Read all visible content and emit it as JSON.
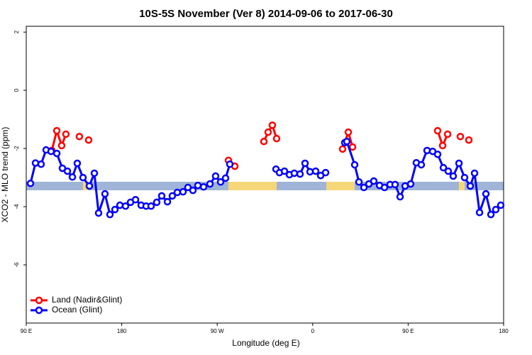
{
  "chart_data": {
    "type": "line",
    "title": "10S-5S November (Ver 8)   2014-09-06 to 2017-06-30",
    "x_label": "Longitude (deg E)",
    "y_label": "XCO2 - MLO trend (ppm)",
    "xlim": [
      90,
      540
    ],
    "ylim": [
      -8,
      2.2
    ],
    "xticks": [
      {
        "value": 90,
        "label": "90 E"
      },
      180,
      {
        "value": 270,
        "label": "90 W"
      },
      {
        "value": 360,
        "label": "0"
      },
      {
        "value": 450,
        "label": "90 E"
      },
      {
        "value": 540,
        "label": "180"
      }
    ],
    "yticks": [
      -6,
      -4,
      -2,
      0,
      2
    ],
    "legend": "bottom-left",
    "series": [
      {
        "name": "Land (Nadir&Glint)",
        "color": "#ff0000",
        "x": [
          114.1,
          118.8,
          123.4,
          127.4,
          null,
          140.1,
          null,
          148.8,
          null,
          280.6,
          286.6,
          null,
          314.0,
          318.0,
          322.0,
          326.0,
          null,
          388.2,
          393.6,
          397.6,
          null,
          477.8,
          482.5,
          487.2,
          null,
          499.2,
          null,
          507.2
        ],
        "values": [
          -2.07,
          -1.39,
          -1.9,
          -1.51,
          null,
          -1.59,
          null,
          -1.71,
          null,
          -2.41,
          -2.61,
          null,
          -1.76,
          -1.44,
          -1.2,
          -1.66,
          null,
          -2.02,
          -1.44,
          -1.95,
          null,
          -1.39,
          -1.9,
          -1.51,
          null,
          -1.59,
          null,
          -1.71
        ]
      },
      {
        "name": "Ocean (Glint)",
        "color": "#0000ff",
        "x": [
          94.0,
          98.7,
          104.0,
          108.7,
          113.4,
          118.8,
          124.1,
          128.8,
          133.5,
          138.1,
          143.5,
          149.5,
          154.2,
          158.2,
          164.2,
          168.9,
          173.6,
          178.3,
          183.6,
          188.3,
          193.0,
          198.3,
          203.0,
          207.7,
          213.0,
          217.7,
          223.1,
          227.7,
          232.4,
          237.8,
          242.4,
          247.1,
          251.8,
          257.2,
          263.2,
          268.5,
          273.2,
          277.9,
          281.9,
          null,
          325.4,
          328.7,
          333.4,
          338.1,
          342.7,
          348.1,
          352.8,
          357.5,
          362.8,
          367.5,
          372.2,
          null,
          390.2,
          392.2,
          399.6,
          403.6,
          408.3,
          413.0,
          417.6,
          423.0,
          427.7,
          433.0,
          437.7,
          442.4,
          447.1,
          452.4,
          457.7,
          462.4,
          467.8,
          473.1,
          477.8,
          483.2,
          487.8,
          492.5,
          497.9,
          503.2,
          508.6,
          512.6,
          517.3,
          523.3,
          528.0,
          532.6,
          537.3
        ],
        "values": [
          -3.2,
          -2.5,
          -2.54,
          -2.05,
          -2.1,
          -2.17,
          -2.68,
          -2.78,
          -2.98,
          -2.51,
          -3.0,
          -3.29,
          -2.85,
          -4.22,
          -3.56,
          -4.27,
          -4.1,
          -3.95,
          -3.98,
          -3.85,
          -3.76,
          -3.95,
          -3.98,
          -3.98,
          -3.85,
          -3.63,
          -3.83,
          -3.63,
          -3.51,
          -3.49,
          -3.34,
          -3.44,
          -3.27,
          -3.32,
          -3.22,
          -2.95,
          -3.15,
          -3.02,
          -2.54,
          null,
          -2.71,
          -2.83,
          -2.78,
          -2.9,
          -2.85,
          -2.88,
          -2.51,
          -2.8,
          -2.78,
          -2.93,
          -2.83,
          null,
          -1.8,
          -1.76,
          -2.56,
          -3.15,
          -3.34,
          -3.22,
          -3.12,
          -3.27,
          -3.34,
          -3.24,
          -3.24,
          -3.66,
          -3.29,
          -3.22,
          -2.49,
          -2.56,
          -2.07,
          -2.1,
          -2.2,
          -2.66,
          -2.78,
          -2.95,
          -2.51,
          -3.0,
          -3.29,
          -2.85,
          -4.2,
          -3.56,
          -4.27,
          -4.1,
          -3.95
        ]
      }
    ]
  }
}
